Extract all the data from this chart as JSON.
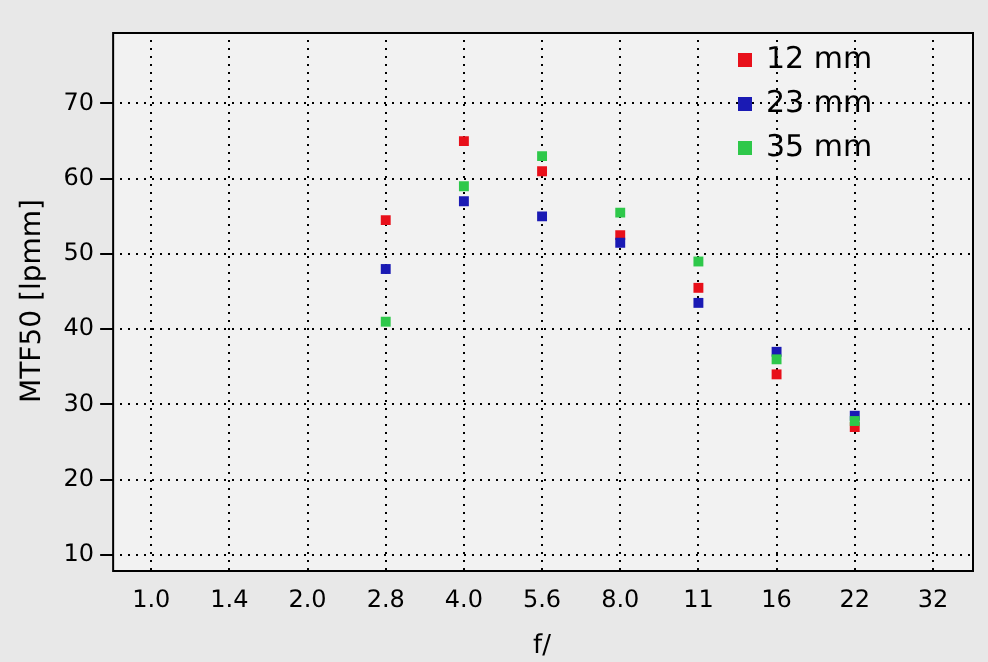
{
  "chart_data": {
    "type": "scatter",
    "xlabel": "f/",
    "ylabel": "MTF50 [lpmm]",
    "categories": [
      "1.0",
      "1.4",
      "2.0",
      "2.8",
      "4.0",
      "5.6",
      "8.0",
      "11",
      "16",
      "22",
      "32"
    ],
    "series": [
      {
        "name": "12 mm",
        "color": "#e8101a",
        "values": [
          null,
          null,
          null,
          54.5,
          65,
          61,
          52.5,
          45.5,
          34,
          27,
          null
        ]
      },
      {
        "name": "23 mm",
        "color": "#1a1ab4",
        "values": [
          null,
          null,
          null,
          48,
          57,
          55,
          51.5,
          43.5,
          37,
          28.5,
          null
        ]
      },
      {
        "name": "35 mm",
        "color": "#2ec84a",
        "values": [
          null,
          null,
          null,
          41,
          59,
          63,
          55.5,
          49,
          36,
          27.8,
          null
        ]
      }
    ],
    "ylim": [
      8,
      79.5
    ],
    "yticks": [
      10,
      20,
      30,
      40,
      50,
      60,
      70
    ],
    "grid": true,
    "legend": "top right",
    "marker": "square"
  }
}
